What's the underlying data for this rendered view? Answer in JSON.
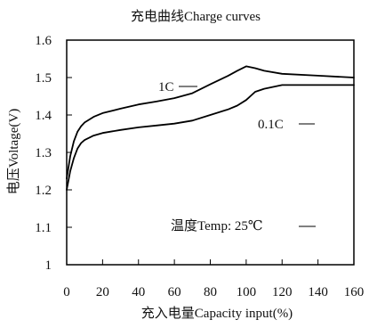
{
  "chart_data": {
    "type": "line",
    "title": "充电曲线Charge curves",
    "xlabel": "充入电量Capacity input(%)",
    "ylabel": "电压Voltage(V)",
    "xlim": [
      0,
      160
    ],
    "ylim": [
      1.0,
      1.6
    ],
    "x_ticks": [
      "0",
      "20",
      "40",
      "60",
      "80",
      "100",
      "120",
      "140",
      "160"
    ],
    "y_ticks": [
      "1",
      "1.1",
      "1.2",
      "1.3",
      "1.4",
      "1.5",
      "1.6"
    ],
    "grid": false,
    "series": [
      {
        "name": "1C",
        "color": "#000000",
        "points": [
          [
            0,
            1.23
          ],
          [
            2,
            1.29
          ],
          [
            4,
            1.33
          ],
          [
            6,
            1.355
          ],
          [
            8,
            1.37
          ],
          [
            10,
            1.38
          ],
          [
            15,
            1.395
          ],
          [
            20,
            1.405
          ],
          [
            30,
            1.417
          ],
          [
            40,
            1.428
          ],
          [
            50,
            1.436
          ],
          [
            60,
            1.445
          ],
          [
            70,
            1.458
          ],
          [
            80,
            1.482
          ],
          [
            90,
            1.505
          ],
          [
            95,
            1.518
          ],
          [
            100,
            1.53
          ],
          [
            105,
            1.525
          ],
          [
            110,
            1.518
          ],
          [
            120,
            1.51
          ],
          [
            140,
            1.505
          ],
          [
            160,
            1.5
          ]
        ]
      },
      {
        "name": "0.1C",
        "color": "#000000",
        "points": [
          [
            0,
            1.2
          ],
          [
            2,
            1.25
          ],
          [
            4,
            1.285
          ],
          [
            6,
            1.31
          ],
          [
            8,
            1.325
          ],
          [
            10,
            1.333
          ],
          [
            15,
            1.345
          ],
          [
            20,
            1.352
          ],
          [
            30,
            1.36
          ],
          [
            40,
            1.367
          ],
          [
            50,
            1.372
          ],
          [
            60,
            1.377
          ],
          [
            70,
            1.385
          ],
          [
            80,
            1.4
          ],
          [
            90,
            1.415
          ],
          [
            95,
            1.425
          ],
          [
            100,
            1.44
          ],
          [
            105,
            1.462
          ],
          [
            110,
            1.47
          ],
          [
            120,
            1.48
          ],
          [
            140,
            1.48
          ],
          [
            160,
            1.48
          ]
        ]
      }
    ],
    "annotations": {
      "series_1_label": "1C",
      "series_2_label": "0.1C",
      "temperature_note": "温度Temp: 25℃"
    }
  }
}
